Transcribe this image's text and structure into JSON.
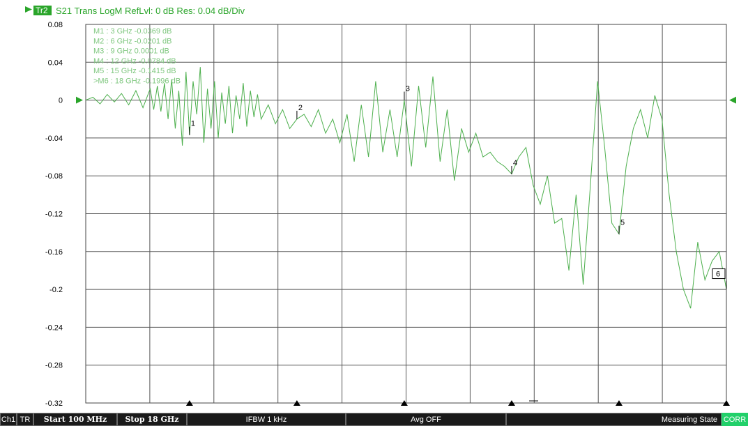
{
  "header": {
    "trace_badge": "Tr2",
    "title": "S21 Trans LogM RefLvl: 0  dB Res: 0.04  dB/Div"
  },
  "markers_list": [
    "M1  :   3 GHz  -0.0369  dB",
    "M2  :   6 GHz  -0.0201  dB",
    "M3  :   9 GHz  0.0001  dB",
    "M4  :   12 GHz  -0.0784  dB",
    "M5  :   15 GHz  -0.1415  dB",
    ">M6  :   18 GHz  -0.1996  dB"
  ],
  "chart_data": {
    "type": "line",
    "title": "S21 Trans LogM RefLvl: 0  dB Res: 0.04  dB/Div",
    "xlabel": "",
    "ylabel": "",
    "xlim": [
      0.1,
      18
    ],
    "ylim": [
      -0.32,
      0.08
    ],
    "grid": true,
    "y_ticks": [
      "0.08",
      "0.04",
      "0",
      "-0.04",
      "-0.08",
      "-0.12",
      "-0.16",
      "-0.2",
      "-0.24",
      "-0.28",
      "-0.32"
    ],
    "y_tick_values": [
      0.08,
      0.04,
      0,
      -0.04,
      -0.08,
      -0.12,
      -0.16,
      -0.2,
      -0.24,
      -0.28,
      -0.32
    ],
    "reference_level": 0,
    "series": [
      {
        "color": "#4caf4c",
        "x": [
          0.1,
          0.3,
          0.5,
          0.7,
          0.9,
          1.1,
          1.3,
          1.5,
          1.7,
          1.9,
          2.0,
          2.1,
          2.2,
          2.3,
          2.4,
          2.5,
          2.6,
          2.7,
          2.8,
          2.9,
          3.0,
          3.1,
          3.2,
          3.3,
          3.4,
          3.5,
          3.6,
          3.7,
          3.8,
          3.9,
          4.0,
          4.1,
          4.2,
          4.3,
          4.4,
          4.5,
          4.6,
          4.7,
          4.8,
          4.9,
          5.0,
          5.2,
          5.4,
          5.6,
          5.8,
          6.0,
          6.2,
          6.4,
          6.6,
          6.8,
          7.0,
          7.2,
          7.4,
          7.6,
          7.8,
          8.0,
          8.2,
          8.4,
          8.6,
          8.8,
          9.0,
          9.2,
          9.4,
          9.6,
          9.8,
          10.0,
          10.2,
          10.4,
          10.6,
          10.8,
          11.0,
          11.2,
          11.4,
          11.6,
          11.8,
          12.0,
          12.2,
          12.4,
          12.6,
          12.8,
          13.0,
          13.2,
          13.4,
          13.6,
          13.8,
          14.0,
          14.2,
          14.4,
          14.6,
          14.8,
          15.0,
          15.2,
          15.4,
          15.6,
          15.8,
          16.0,
          16.2,
          16.4,
          16.6,
          16.8,
          17.0,
          17.2,
          17.4,
          17.6,
          17.8,
          18.0
        ],
        "values": [
          0,
          0.003,
          -0.004,
          0.006,
          -0.002,
          0.007,
          -0.005,
          0.01,
          -0.008,
          0.012,
          -0.01,
          0.015,
          -0.012,
          0.018,
          -0.02,
          0.022,
          -0.03,
          0.01,
          -0.048,
          0.03,
          -0.037,
          0.02,
          -0.015,
          0.035,
          -0.045,
          0.012,
          -0.03,
          0.02,
          -0.04,
          0.008,
          -0.025,
          0.015,
          -0.035,
          0.005,
          -0.02,
          0.018,
          -0.028,
          0.01,
          -0.018,
          0.006,
          -0.02,
          -0.005,
          -0.025,
          -0.01,
          -0.03,
          -0.02,
          -0.015,
          -0.028,
          -0.01,
          -0.035,
          -0.02,
          -0.045,
          -0.015,
          -0.065,
          -0.005,
          -0.06,
          0.02,
          -0.055,
          -0.01,
          -0.06,
          0.0001,
          -0.07,
          0.015,
          -0.05,
          0.025,
          -0.065,
          -0.01,
          -0.085,
          -0.03,
          -0.055,
          -0.035,
          -0.06,
          -0.055,
          -0.065,
          -0.07,
          -0.078,
          -0.06,
          -0.05,
          -0.09,
          -0.11,
          -0.08,
          -0.13,
          -0.125,
          -0.18,
          -0.1,
          -0.195,
          -0.09,
          0.02,
          -0.05,
          -0.13,
          -0.1415,
          -0.07,
          -0.03,
          -0.01,
          -0.04,
          0.005,
          -0.02,
          -0.1,
          -0.16,
          -0.2,
          -0.22,
          -0.15,
          -0.19,
          -0.17,
          -0.16,
          -0.1996
        ]
      }
    ],
    "markers": [
      {
        "label": "1",
        "x": 3,
        "y": -0.0369
      },
      {
        "label": "2",
        "x": 6,
        "y": -0.0201
      },
      {
        "label": "3",
        "x": 9,
        "y": 0.0001
      },
      {
        "label": "4",
        "x": 12,
        "y": -0.0784
      },
      {
        "label": "5",
        "x": 15,
        "y": -0.1415
      },
      {
        "label": "6",
        "x": 18,
        "y": -0.1996
      }
    ]
  },
  "statusbar": {
    "channel": "Ch1",
    "mode": "TR",
    "start": "Start 100 MHz",
    "stop": "Stop 18 GHz",
    "ifbw": "IFBW 1 kHz",
    "avg": "Avg OFF",
    "state": "Measuring State",
    "corr": "CORR"
  },
  "colors": {
    "trace": "#4caf4c",
    "header": "#2aa52a",
    "grid": "#555555",
    "corr": "#22d06a"
  }
}
